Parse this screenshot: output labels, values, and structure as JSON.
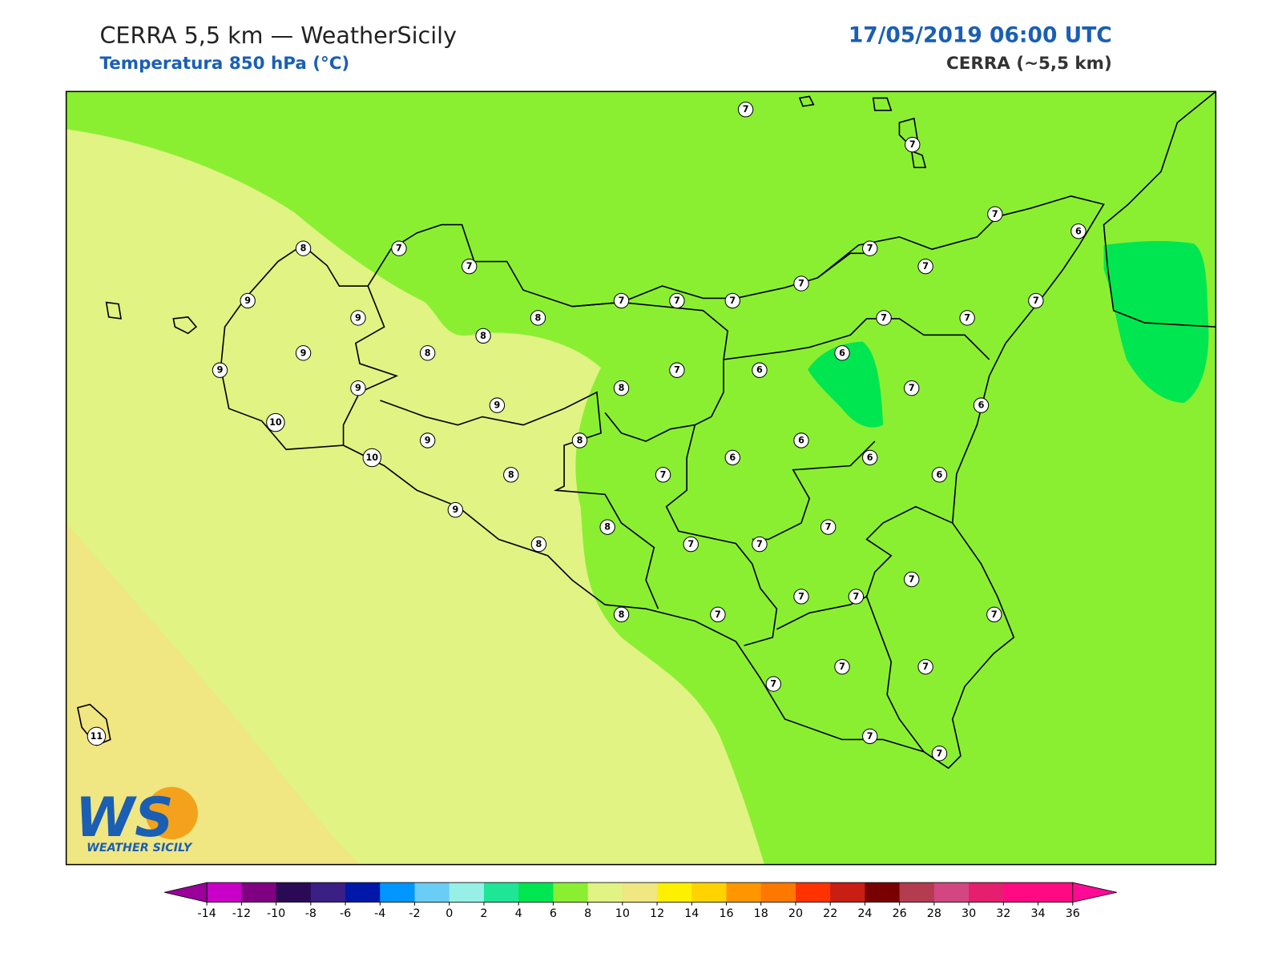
{
  "header": {
    "title": "CERRA 5,5 km — WeatherSicily",
    "subtitle": "Temperatura 850 hPa (°C)",
    "datetime": "17/05/2019 06:00 UTC",
    "model": "CERRA (~5,5 km)"
  },
  "map": {
    "station_values": [
      7,
      7,
      7,
      6,
      7,
      7,
      7,
      7,
      7,
      7,
      7,
      7,
      7,
      8,
      8,
      6,
      6,
      7,
      8,
      7,
      6,
      9,
      8,
      6,
      6,
      6,
      7,
      6,
      8,
      8,
      7,
      7,
      7,
      8,
      9,
      7,
      7,
      7,
      7,
      8,
      7,
      7,
      7,
      7,
      7,
      7,
      11,
      8,
      7,
      7,
      9,
      9,
      9,
      9,
      8,
      9,
      10,
      9,
      10
    ]
  },
  "colorbar": {
    "ticks": [
      -14,
      -12,
      -10,
      -8,
      -6,
      -4,
      -2,
      0,
      2,
      4,
      6,
      8,
      10,
      12,
      14,
      16,
      18,
      20,
      22,
      24,
      26,
      28,
      30,
      32,
      34,
      36
    ],
    "colors": [
      "#c800c8",
      "#7f0080",
      "#2b0a55",
      "#3a1f85",
      "#0018a8",
      "#0096ff",
      "#6acdf5",
      "#96f0e6",
      "#1ee696",
      "#00e650",
      "#8aef31",
      "#e0f383",
      "#f0e682",
      "#fff000",
      "#ffd200",
      "#ff9600",
      "#ff7800",
      "#ff3200",
      "#c81e14",
      "#780000",
      "#b43c50",
      "#d24682",
      "#e61e6e",
      "#ff0a82",
      "#ff0a82"
    ],
    "extend_low_color": "#9b009b",
    "extend_high_color": "#ff0a96"
  },
  "logo": {
    "mark": "WS",
    "caption": "WEATHER SICILY"
  }
}
